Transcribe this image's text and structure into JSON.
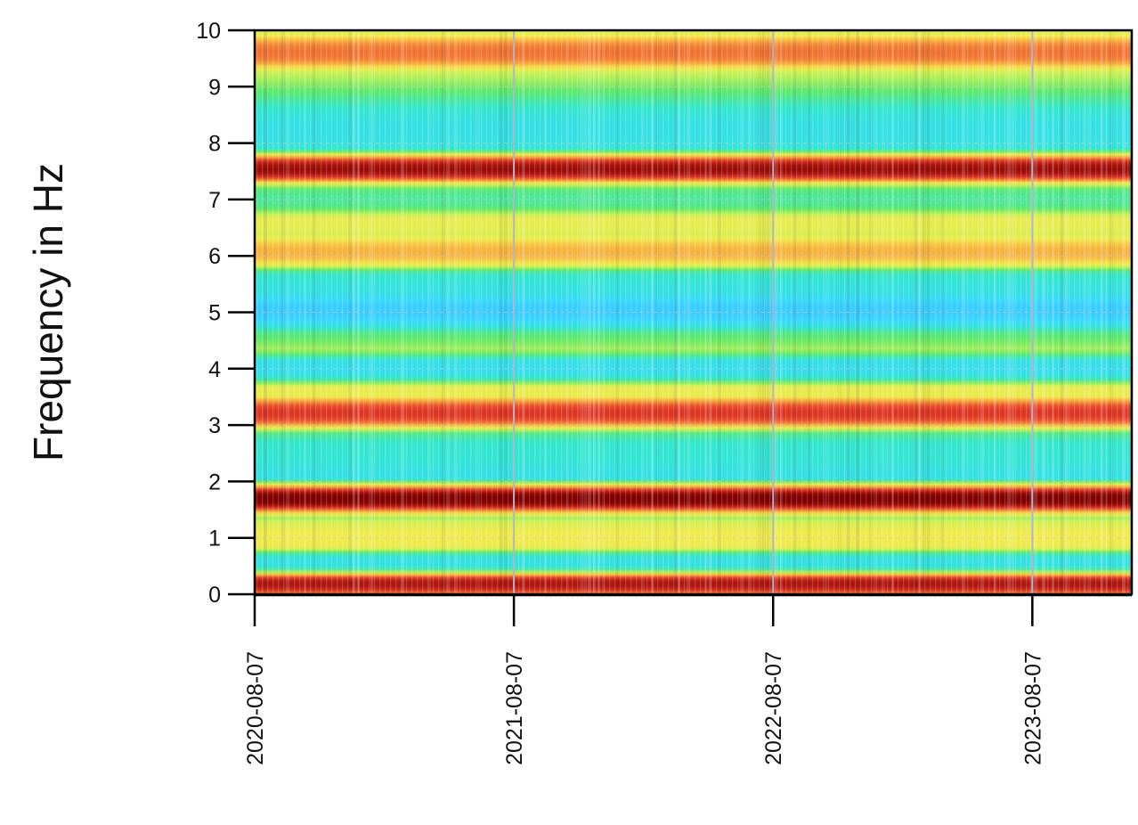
{
  "chart_data": {
    "type": "heatmap",
    "title": "",
    "xlabel": "",
    "ylabel": "Frequency in Hz",
    "x_axis": {
      "type": "date",
      "range": [
        "2020-08-07",
        "2023-12-25"
      ],
      "ticks": [
        "2020-08-07",
        "2021-08-07",
        "2022-08-07",
        "2023-08-07"
      ]
    },
    "y_axis": {
      "range": [
        0,
        10
      ],
      "ticks": [
        0,
        1,
        2,
        3,
        4,
        5,
        6,
        7,
        8,
        9,
        10
      ]
    },
    "grid": true,
    "legend": "none",
    "colormap": [
      "#1a0000",
      "#8b0000",
      "#e8402a",
      "#f7a13a",
      "#f5e94a",
      "#c9f055",
      "#5fe868",
      "#33e6d0",
      "#38d8ff",
      "#3a86ff"
    ],
    "bands": [
      {
        "freq": 0.2,
        "level": "very high",
        "intensity": 0.92
      },
      {
        "freq": 0.55,
        "level": "very low",
        "intensity": 0.12
      },
      {
        "freq": 1.0,
        "level": "medium",
        "intensity": 0.55
      },
      {
        "freq": 1.7,
        "level": "highest",
        "intensity": 1.0
      },
      {
        "freq": 2.5,
        "level": "low",
        "intensity": 0.22
      },
      {
        "freq": 3.2,
        "level": "high",
        "intensity": 0.85
      },
      {
        "freq": 4.0,
        "level": "very low",
        "intensity": 0.1
      },
      {
        "freq": 5.0,
        "level": "very low",
        "intensity": 0.08
      },
      {
        "freq": 6.05,
        "level": "medium-high",
        "intensity": 0.68
      },
      {
        "freq": 7.0,
        "level": "low",
        "intensity": 0.25
      },
      {
        "freq": 7.55,
        "level": "very high",
        "intensity": 0.95
      },
      {
        "freq": 9.6,
        "level": "high",
        "intensity": 0.75
      }
    ]
  }
}
